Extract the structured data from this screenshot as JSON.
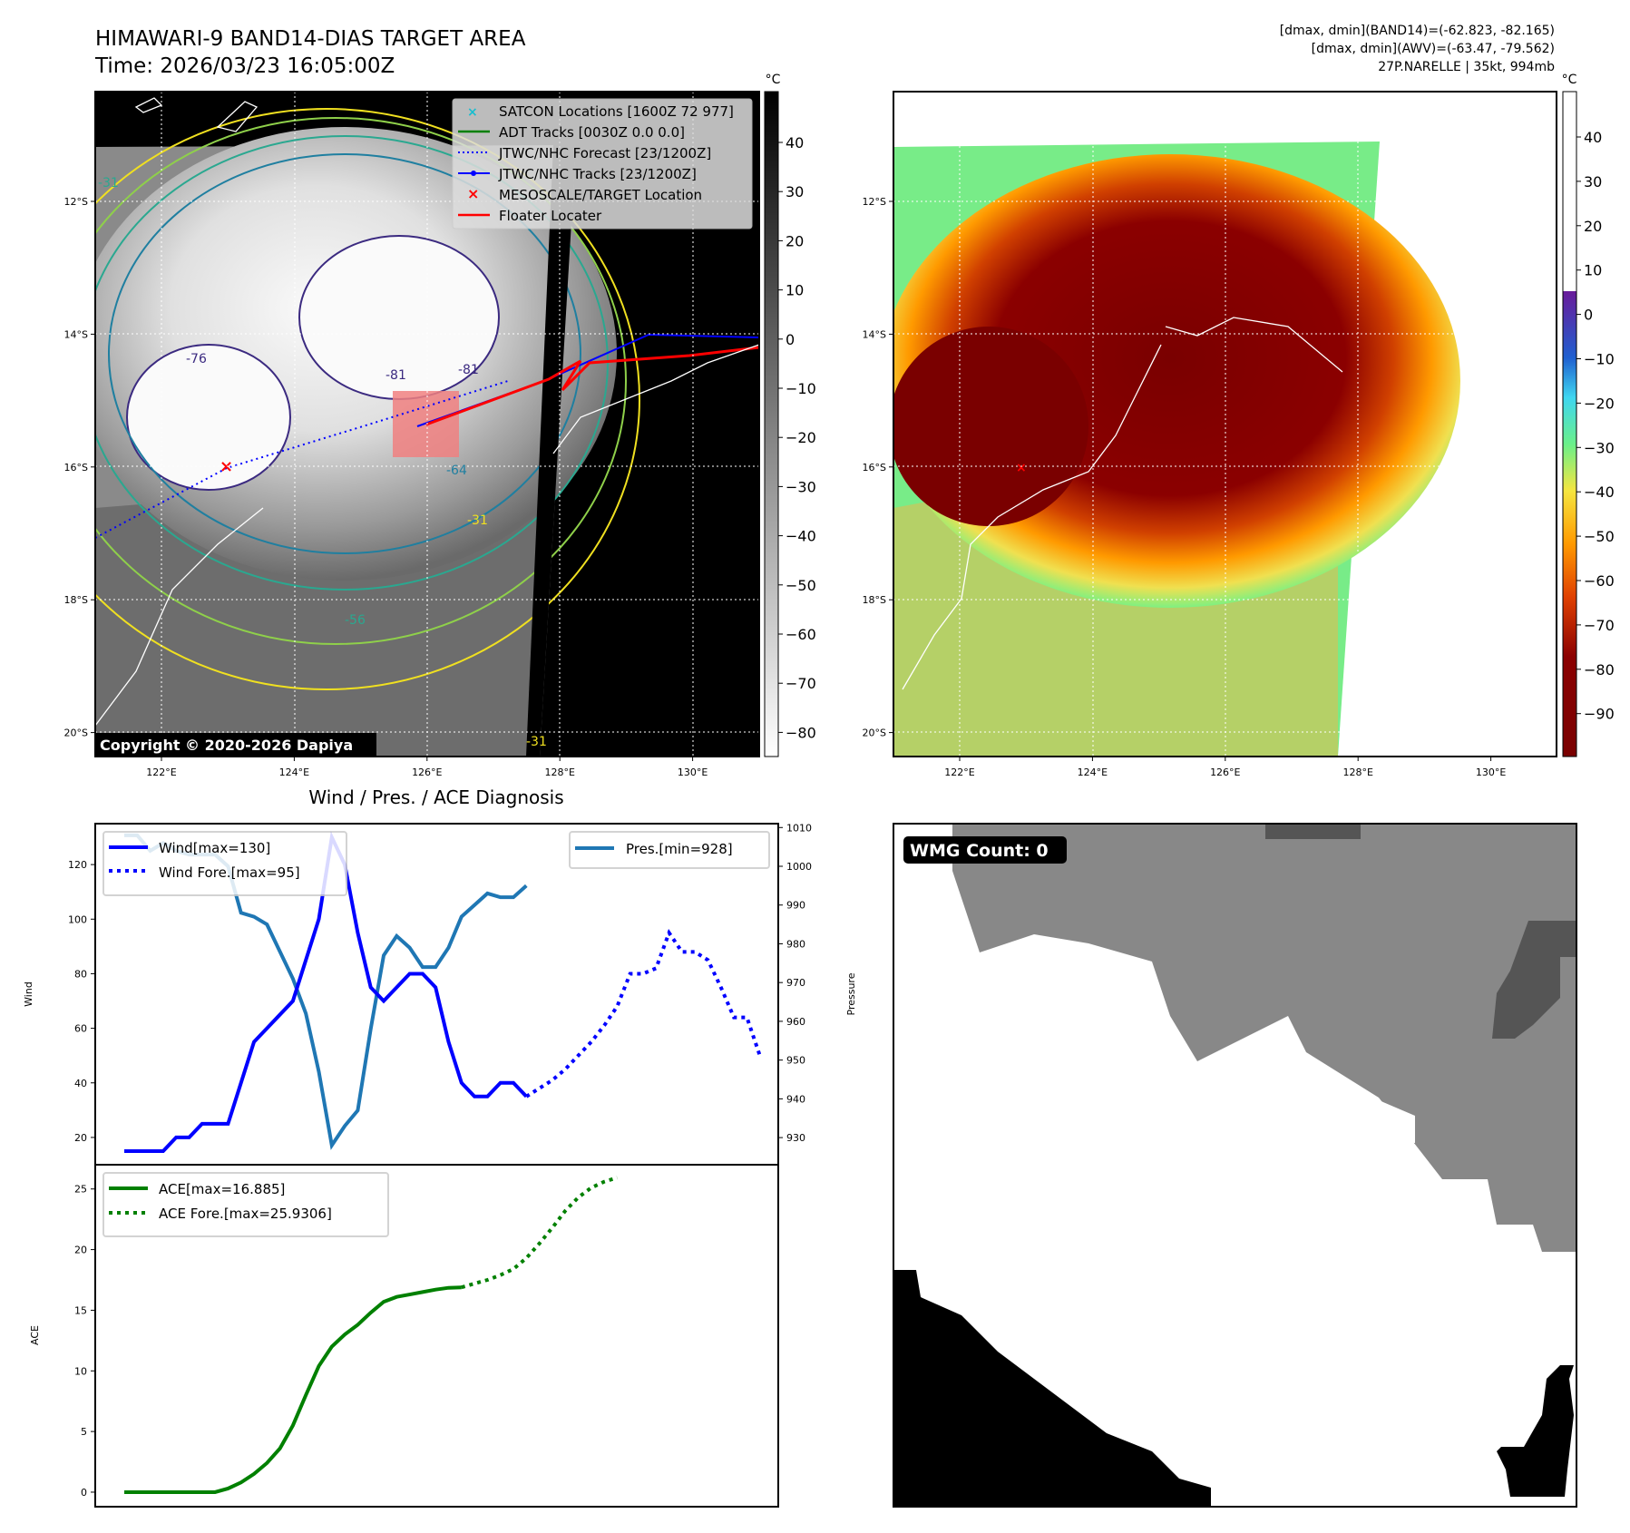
{
  "header": {
    "title": "HIMAWARI-9 BAND14-DIAS TARGET AREA",
    "time": "Time: 2026/03/23 16:05:00Z",
    "stats_band14": "[dmax, dmin](BAND14)=(-62.823, -82.165)",
    "stats_awv": "[dmax, dmin](AWV)=(-63.47, -79.562)",
    "storm": "27P.NARELLE | 35kt, 994mb"
  },
  "map": {
    "lon_ticks": [
      "122°E",
      "124°E",
      "126°E",
      "128°E",
      "130°E"
    ],
    "lat_ticks": [
      "12°S",
      "14°S",
      "16°S",
      "18°S",
      "20°S"
    ],
    "copyright": "Copyright © 2020-2026 Dapiya",
    "contour_labels": [
      "-31",
      "-76",
      "-81",
      "-81",
      "-64",
      "-31",
      "-56",
      "-31"
    ],
    "legend": [
      {
        "label": "SATCON Locations [1600Z 72 977]",
        "color": "#17becf",
        "marker": "x"
      },
      {
        "label": "ADT Tracks [0030Z 0.0 0.0]",
        "color": "#008000",
        "marker": "line"
      },
      {
        "label": "JTWC/NHC Forecast [23/1200Z]",
        "color": "#0000ff",
        "marker": "dotted"
      },
      {
        "label": "JTWC/NHC Tracks [23/1200Z]",
        "color": "#0000ff",
        "marker": "line-dot"
      },
      {
        "label": "MESOSCALE/TARGET Location",
        "color": "#ff0000",
        "marker": "x"
      },
      {
        "label": "Floater Locater",
        "color": "#ff0000",
        "marker": "line"
      }
    ]
  },
  "colorbar1": {
    "unit": "°C",
    "ticks": [
      "40",
      "30",
      "20",
      "10",
      "0",
      "−10",
      "−20",
      "−30",
      "−40",
      "−50",
      "−60",
      "−70",
      "−80"
    ]
  },
  "colorbar2": {
    "unit": "°C",
    "ticks": [
      "40",
      "30",
      "20",
      "10",
      "0",
      "−10",
      "−20",
      "−30",
      "−40",
      "−50",
      "−60",
      "−70",
      "−80",
      "−90"
    ]
  },
  "wmg": {
    "label": "WMG Count: 0"
  },
  "chart_data": [
    {
      "type": "line",
      "title": "Wind / Pres. / ACE Diagnosis",
      "ylabel": "Wind",
      "y2label": "Pressure",
      "ylim": [
        10,
        135
      ],
      "y2lim": [
        923,
        1011
      ],
      "yticks": [
        "20",
        "40",
        "60",
        "80",
        "100",
        "120"
      ],
      "y2ticks": [
        "930",
        "940",
        "950",
        "960",
        "970",
        "980",
        "990",
        "1000",
        "1010"
      ],
      "legend_left": [
        "Wind[max=130]",
        "Wind Fore.[max=95]"
      ],
      "legend_right": [
        "Pres.[min=928]"
      ],
      "series": [
        {
          "name": "Wind[max=130]",
          "style": "solid",
          "color": "#0000ff",
          "x0": 0,
          "values": [
            15,
            15,
            15,
            15,
            20,
            20,
            25,
            25,
            25,
            40,
            55,
            60,
            65,
            70,
            85,
            100,
            130,
            120,
            95,
            75,
            70,
            75,
            80,
            80,
            75,
            55,
            40,
            35,
            35,
            40,
            40,
            35
          ]
        },
        {
          "name": "Wind Fore.[max=95]",
          "style": "dotted",
          "color": "#0000ff",
          "x0": 31,
          "values": [
            35,
            38,
            41,
            45,
            50,
            55,
            61,
            68,
            80,
            80,
            82,
            95,
            88,
            88,
            85,
            75,
            64,
            64,
            50
          ]
        },
        {
          "name": "Pres.[min=928]",
          "style": "solid",
          "color": "#1f77b4",
          "axis": "right",
          "x0": 0,
          "values": [
            1008,
            1008,
            1004,
            1006,
            1004,
            1003,
            1003,
            1003,
            1000,
            988,
            987,
            985,
            978,
            971,
            962,
            947,
            928,
            933,
            937,
            958,
            977,
            982,
            979,
            974,
            974,
            979,
            987,
            990,
            993,
            992,
            992,
            995
          ]
        }
      ]
    },
    {
      "type": "line",
      "ylabel": "ACE",
      "ylim": [
        -1.2,
        27
      ],
      "yticks": [
        "0",
        "5",
        "10",
        "15",
        "20",
        "25"
      ],
      "legend": [
        "ACE[max=16.885]",
        "ACE Fore.[max=25.9306]"
      ],
      "series": [
        {
          "name": "ACE[max=16.885]",
          "style": "solid",
          "color": "#008000",
          "x0": 0,
          "values": [
            0,
            0,
            0,
            0,
            0,
            0,
            0,
            0,
            0.3,
            0.8,
            1.5,
            2.4,
            3.6,
            5.5,
            8,
            10.4,
            12,
            13,
            13.8,
            14.8,
            15.7,
            16.1,
            16.3,
            16.5,
            16.7,
            16.85,
            16.885
          ]
        },
        {
          "name": "ACE Fore.[max=25.9306]",
          "style": "dotted",
          "color": "#008000",
          "x0": 26,
          "values": [
            16.885,
            17.2,
            17.5,
            17.9,
            18.4,
            19.3,
            20.5,
            21.8,
            23.2,
            24.3,
            25.1,
            25.6,
            25.9306
          ]
        }
      ]
    }
  ]
}
